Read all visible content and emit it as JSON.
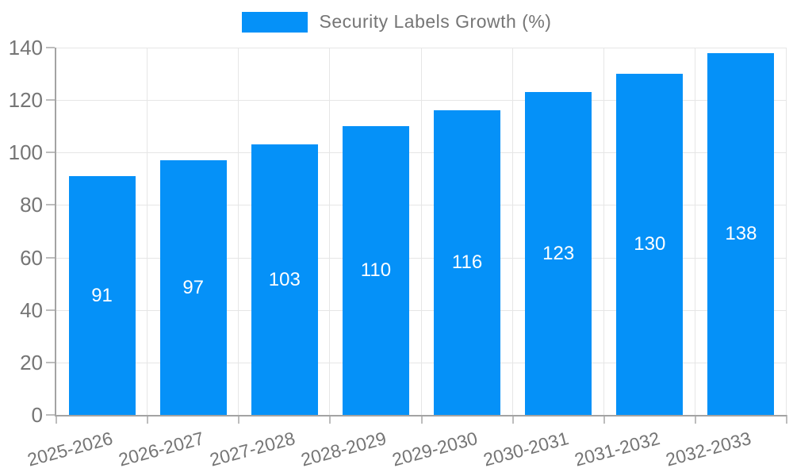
{
  "chart_data": {
    "type": "bar",
    "title": "Security Labels Growth (%)",
    "categories": [
      "2025-2026",
      "2026-2027",
      "2027-2028",
      "2028-2029",
      "2029-2030",
      "2030-2031",
      "2031-2032",
      "2032-2033"
    ],
    "values": [
      91,
      97,
      103,
      110,
      116,
      123,
      130,
      138
    ],
    "xlabel": "",
    "ylabel": "",
    "ylim": [
      0,
      140
    ],
    "yticks": [
      0,
      20,
      40,
      60,
      80,
      100,
      120,
      140
    ],
    "grid": true,
    "legend_position": "top",
    "x_label_rotation_deg": -15,
    "colors": {
      "bar": "#0591f8",
      "value_label": "#ffffff",
      "tick_label": "#757575",
      "legend_text": "#757575",
      "gridline": "#e6e6e6",
      "axis_line": "#a3a3a3",
      "tick_mark": "#bdbdbd",
      "background": "#ffffff"
    }
  }
}
